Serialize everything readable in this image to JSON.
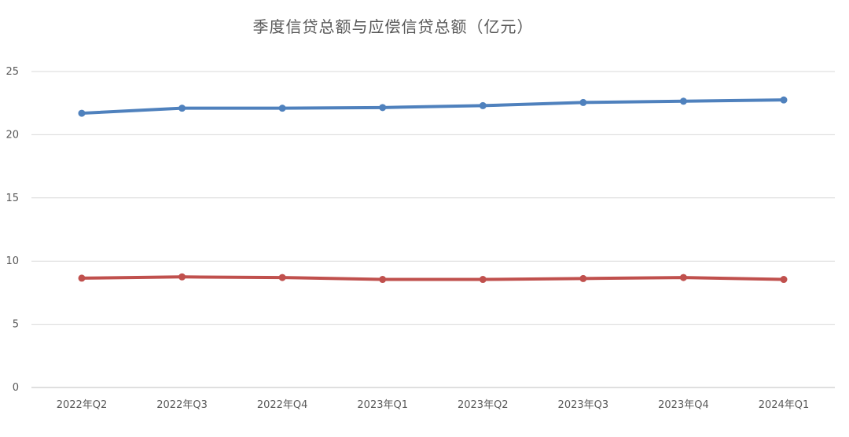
{
  "chart_data": {
    "type": "line",
    "title": "季度信贷总额与应偿信贷总额（亿元）",
    "categories": [
      "2022年Q2",
      "2022年Q3",
      "2022年Q4",
      "2023年Q1",
      "2023年Q2",
      "2023年Q3",
      "2023年Q4",
      "2024年Q1"
    ],
    "series": [
      {
        "values": [
          21.7,
          22.1,
          22.1,
          22.15,
          22.3,
          22.55,
          22.65,
          22.75
        ],
        "color": "#4f81bd"
      },
      {
        "values": [
          8.65,
          8.75,
          8.7,
          8.55,
          8.55,
          8.62,
          8.7,
          8.55
        ],
        "color": "#c0504d"
      }
    ],
    "ylim": [
      0,
      25
    ],
    "yticks": [
      0,
      5,
      10,
      15,
      20,
      25
    ],
    "grid": true,
    "legend": "none"
  }
}
